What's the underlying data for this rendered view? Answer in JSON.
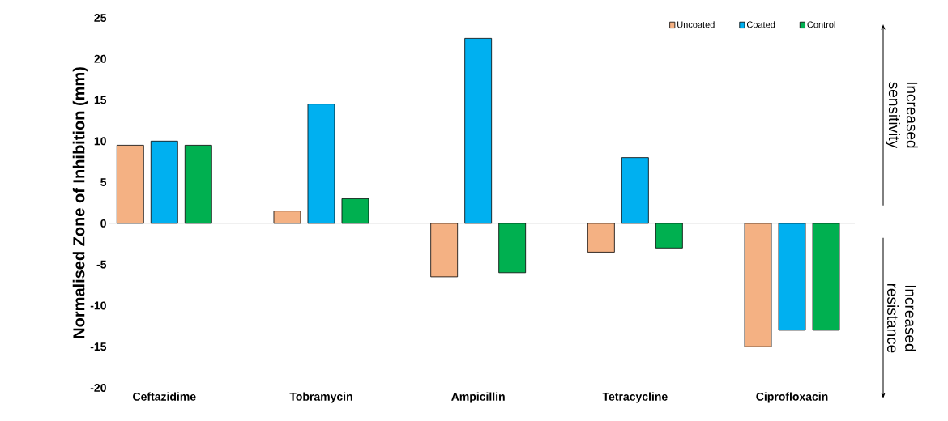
{
  "chart_data": {
    "type": "bar",
    "ylabel": "Normalised Zone of Inhibition (mm)",
    "categories": [
      "Ceftazidime",
      "Tobramycin",
      "Ampicillin",
      "Tetracycline",
      "Ciprofloxacin"
    ],
    "series": [
      {
        "name": "Uncoated",
        "color": "#f4b183",
        "values": [
          9.5,
          1.5,
          -6.5,
          -3.5,
          -15
        ]
      },
      {
        "name": "Coated",
        "color": "#00b0f0",
        "values": [
          10,
          14.5,
          22.5,
          8,
          -13
        ]
      },
      {
        "name": "Control",
        "color": "#00b050",
        "values": [
          9.5,
          3,
          -6,
          -3,
          -13
        ]
      }
    ],
    "ylim": [
      -20,
      25
    ],
    "yticks": [
      -20,
      -15,
      -10,
      -5,
      0,
      5,
      10,
      15,
      20,
      25
    ],
    "legend": "top right",
    "annotations": [
      "Increased sensitivity",
      "Increased resistance"
    ]
  }
}
